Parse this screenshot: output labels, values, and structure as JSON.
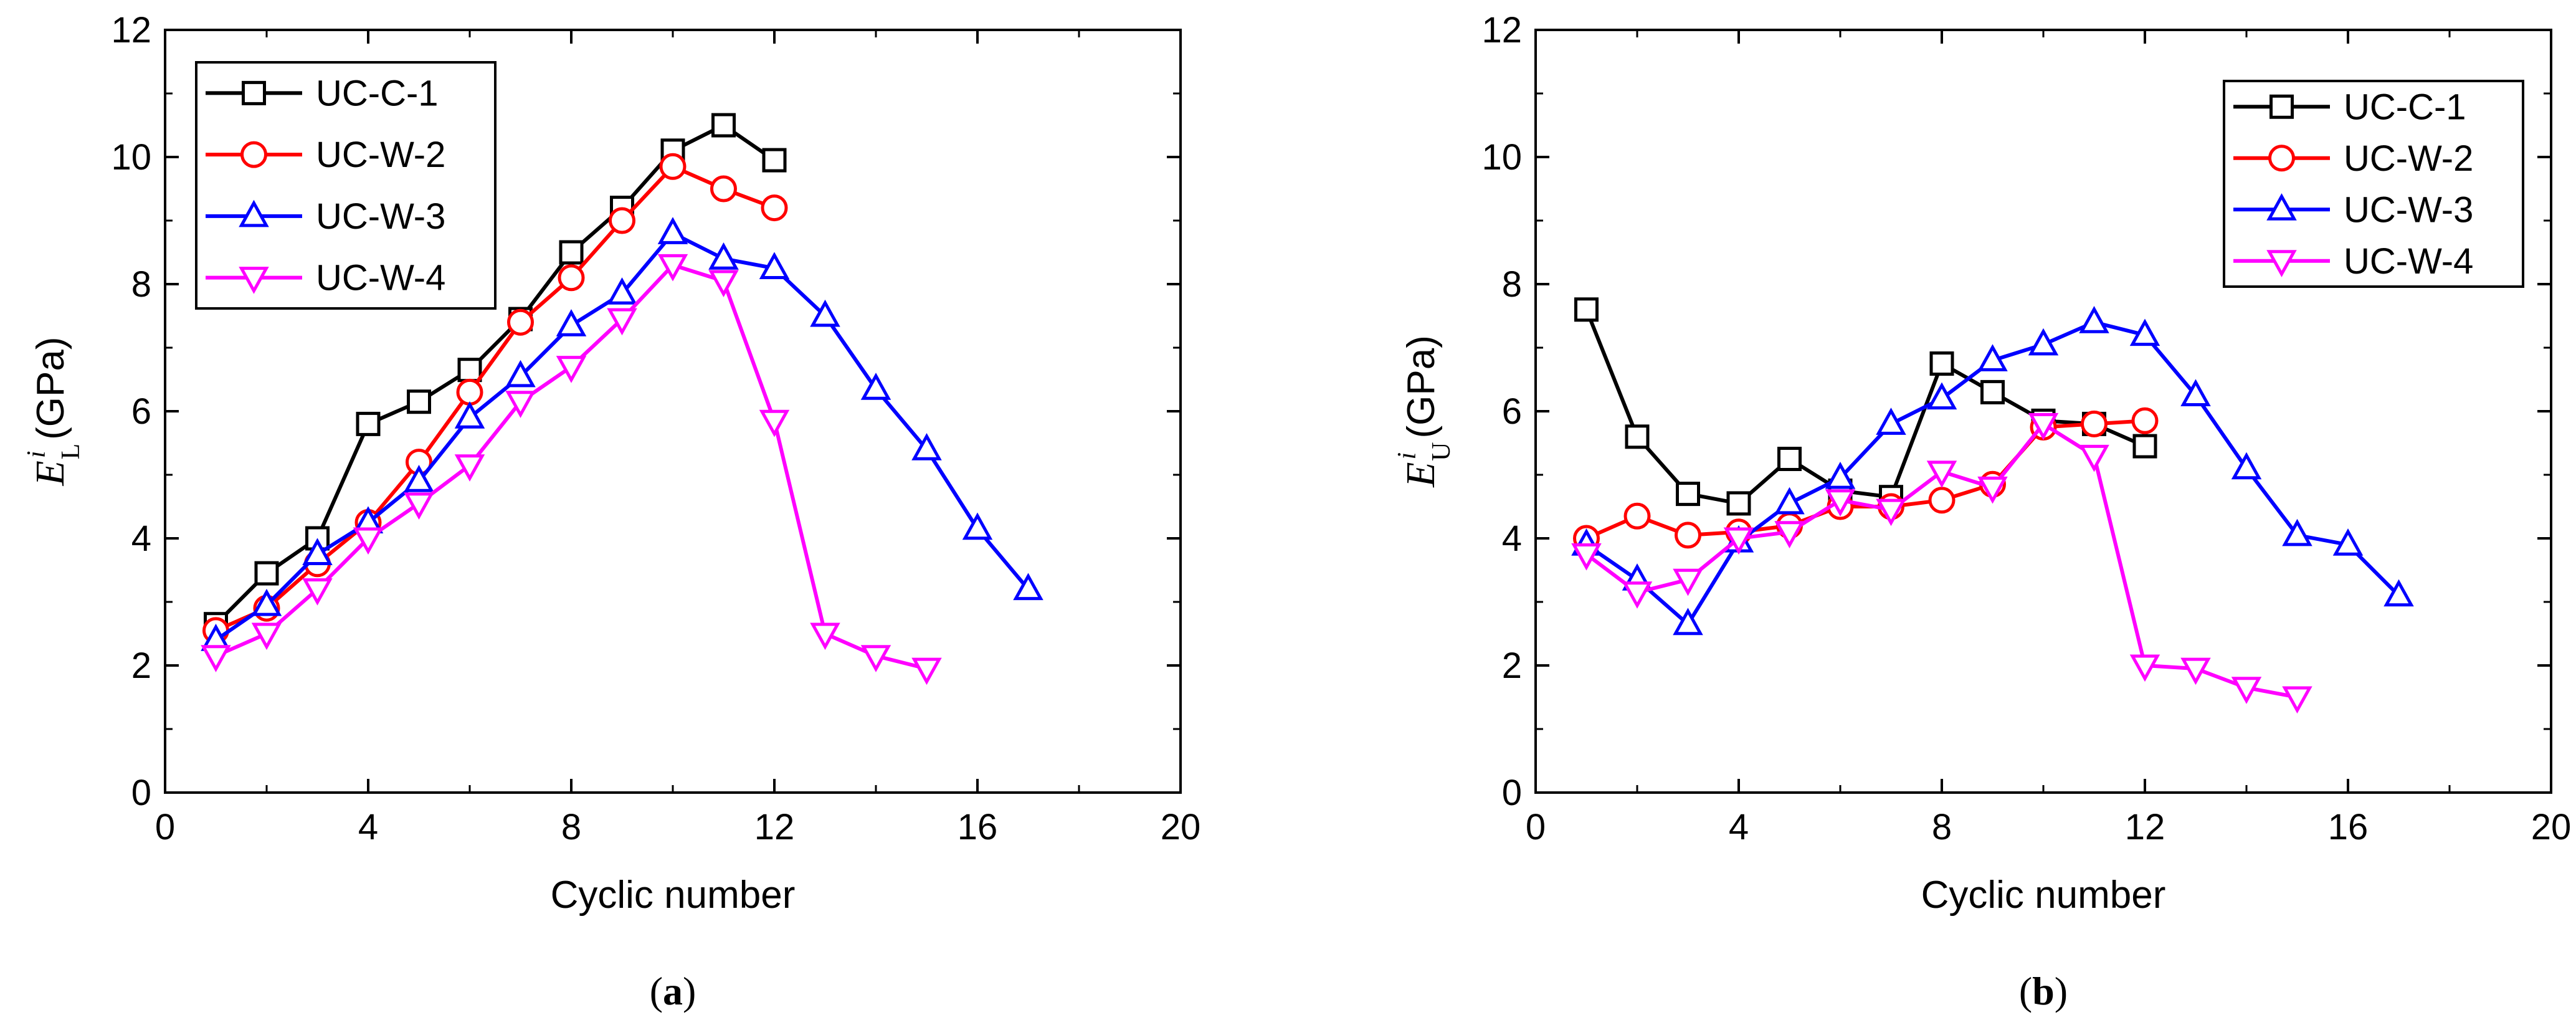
{
  "chart_data": [
    {
      "type": "line",
      "panel_label": "a",
      "xlabel": "Cyclic number",
      "ylabel": {
        "symbol": "E",
        "superscript": "i",
        "subscript": "L",
        "unit": "(GPa)"
      },
      "xlim": [
        0,
        20
      ],
      "ylim": [
        0,
        12
      ],
      "xticks": [
        0,
        4,
        8,
        12,
        16,
        20
      ],
      "yticks": [
        0,
        2,
        4,
        6,
        8,
        10,
        12
      ],
      "legend_position": "top-left",
      "series": [
        {
          "name": "UC-C-1",
          "color": "#000000",
          "marker": "square",
          "x": [
            1,
            2,
            3,
            4,
            5,
            6,
            7,
            8,
            9,
            10,
            11,
            12
          ],
          "y": [
            2.65,
            3.45,
            4.0,
            5.8,
            6.15,
            6.65,
            7.45,
            8.5,
            9.2,
            10.1,
            10.5,
            9.95
          ]
        },
        {
          "name": "UC-W-2",
          "color": "#ff0000",
          "marker": "circle",
          "x": [
            1,
            2,
            3,
            4,
            5,
            6,
            7,
            8,
            9,
            10,
            11,
            12
          ],
          "y": [
            2.55,
            2.9,
            3.6,
            4.25,
            5.2,
            6.3,
            7.4,
            8.1,
            9.0,
            9.85,
            9.5,
            9.2
          ]
        },
        {
          "name": "UC-W-3",
          "color": "#0000ff",
          "marker": "triangle-up",
          "x": [
            1,
            2,
            3,
            4,
            5,
            6,
            7,
            8,
            9,
            10,
            11,
            12,
            13,
            14,
            15,
            16,
            17
          ],
          "y": [
            2.4,
            2.95,
            3.75,
            4.25,
            4.9,
            5.9,
            6.55,
            7.35,
            7.85,
            8.8,
            8.4,
            8.25,
            7.5,
            6.35,
            5.4,
            4.15,
            3.2
          ]
        },
        {
          "name": "UC-W-4",
          "color": "#ff00ff",
          "marker": "triangle-down",
          "x": [
            1,
            2,
            3,
            4,
            5,
            6,
            7,
            8,
            9,
            10,
            11,
            12,
            13,
            14,
            15
          ],
          "y": [
            2.15,
            2.5,
            3.2,
            4.0,
            4.55,
            5.15,
            6.15,
            6.7,
            7.45,
            8.3,
            8.05,
            5.85,
            2.5,
            2.15,
            1.95
          ]
        }
      ]
    },
    {
      "type": "line",
      "panel_label": "b",
      "xlabel": "Cyclic number",
      "ylabel": {
        "symbol": "E",
        "superscript": "i",
        "subscript": "U",
        "unit": "(GPa)"
      },
      "xlim": [
        0,
        20
      ],
      "ylim": [
        0,
        12
      ],
      "xticks": [
        0,
        4,
        8,
        12,
        16,
        20
      ],
      "yticks": [
        0,
        2,
        4,
        6,
        8,
        10,
        12
      ],
      "legend_position": "top-right",
      "series": [
        {
          "name": "UC-C-1",
          "color": "#000000",
          "marker": "square",
          "x": [
            1,
            2,
            3,
            4,
            5,
            6,
            7,
            8,
            9,
            10,
            11,
            12
          ],
          "y": [
            7.6,
            5.6,
            4.7,
            4.55,
            5.25,
            4.75,
            4.65,
            6.75,
            6.3,
            5.85,
            5.8,
            5.45
          ]
        },
        {
          "name": "UC-W-2",
          "color": "#ff0000",
          "marker": "circle",
          "x": [
            1,
            2,
            3,
            4,
            5,
            6,
            7,
            8,
            9,
            10,
            11,
            12
          ],
          "y": [
            4.0,
            4.35,
            4.05,
            4.1,
            4.2,
            4.5,
            4.5,
            4.6,
            4.85,
            5.75,
            5.8,
            5.85
          ]
        },
        {
          "name": "UC-W-3",
          "color": "#0000ff",
          "marker": "triangle-up",
          "x": [
            1,
            2,
            3,
            4,
            5,
            6,
            7,
            8,
            9,
            10,
            11,
            12,
            13,
            14,
            15,
            16,
            17
          ],
          "y": [
            3.9,
            3.35,
            2.65,
            3.95,
            4.55,
            4.95,
            5.8,
            6.2,
            6.8,
            7.05,
            7.4,
            7.2,
            6.25,
            5.1,
            4.05,
            3.9,
            3.1
          ]
        },
        {
          "name": "UC-W-4",
          "color": "#ff00ff",
          "marker": "triangle-down",
          "x": [
            1,
            2,
            3,
            4,
            5,
            6,
            7,
            8,
            9,
            10,
            11,
            12,
            13,
            14,
            15
          ],
          "y": [
            3.75,
            3.15,
            3.35,
            4.0,
            4.1,
            4.6,
            4.45,
            5.05,
            4.8,
            5.8,
            5.3,
            2.0,
            1.95,
            1.65,
            1.5
          ]
        }
      ]
    }
  ]
}
